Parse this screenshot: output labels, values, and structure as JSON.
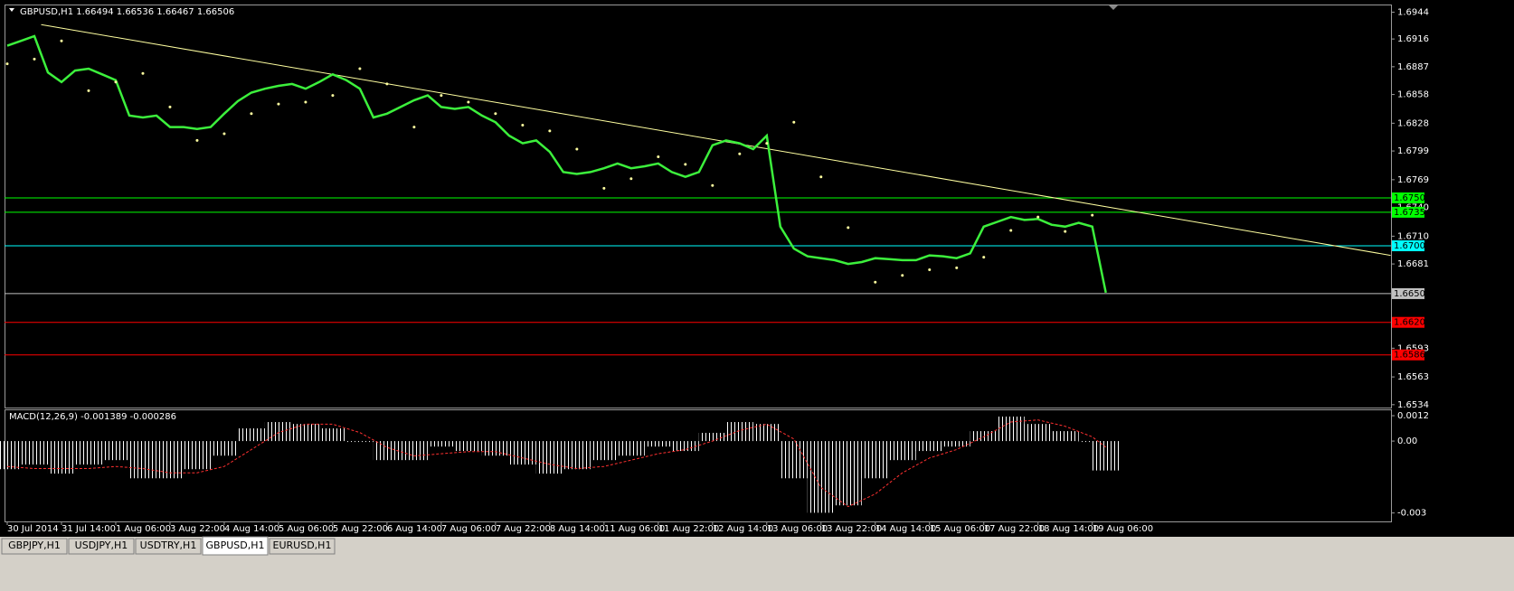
{
  "chart_data": [
    {
      "type": "line",
      "title": "GBPUSD,H1 1.66494 1.66536 1.66467 1.66506",
      "x": [
        0,
        4,
        8,
        12,
        16,
        20,
        24,
        28,
        32,
        36,
        40,
        44,
        48,
        52,
        56,
        60,
        64,
        68,
        72,
        76,
        80,
        84,
        88,
        92,
        96,
        100,
        104,
        108,
        112,
        116,
        120,
        124,
        128,
        132,
        136,
        140,
        144,
        148,
        152,
        156,
        160,
        164,
        168,
        172,
        176,
        180,
        184,
        188,
        192,
        196,
        200,
        204,
        208,
        212,
        216,
        220,
        224,
        228,
        232,
        236,
        240,
        244,
        248,
        252,
        256,
        260,
        264,
        268,
        272,
        276,
        280,
        284,
        288,
        292,
        296,
        300,
        304,
        308,
        312,
        316,
        320,
        324
      ],
      "series": [
        {
          "color": "#3cf03c",
          "values": [
            1.6909,
            1.6914,
            1.6919,
            1.6881,
            1.6871,
            1.6883,
            1.6885,
            1.6879,
            1.6873,
            1.6836,
            1.6834,
            1.6836,
            1.6824,
            1.6824,
            1.6822,
            1.6824,
            1.6838,
            1.6851,
            1.686,
            1.6864,
            1.6867,
            1.6869,
            1.6864,
            1.6871,
            1.6879,
            1.6873,
            1.6864,
            1.6834,
            1.6838,
            1.6845,
            1.6852,
            1.6857,
            1.6845,
            1.6843,
            1.6845,
            1.6836,
            1.6829,
            1.6815,
            1.6807,
            1.681,
            1.6798,
            1.6777,
            1.6775,
            1.6777,
            1.6781,
            1.6786,
            1.6781,
            1.6783,
            1.6786,
            1.6777,
            1.6772,
            1.6777,
            1.6805,
            1.681,
            1.6807,
            1.6801,
            1.6815,
            1.672,
            1.6697,
            1.6689,
            1.6687,
            1.6685,
            1.6681,
            1.6683,
            1.6687,
            1.6686,
            1.6685,
            1.6685,
            1.669,
            1.6689,
            1.6687,
            1.6692,
            1.672,
            1.6725,
            1.673,
            1.6727,
            1.6728,
            1.6722,
            1.672,
            1.6724,
            1.672,
            1.6651
          ]
        }
      ],
      "sar": {
        "color": "#ffffa0",
        "x": [
          0,
          8,
          16,
          24,
          32,
          40,
          48,
          56,
          64,
          72,
          80,
          88,
          96,
          104,
          112,
          120,
          128,
          136,
          144,
          152,
          160,
          168,
          176,
          184,
          192,
          200,
          208,
          216,
          224,
          232,
          240,
          248,
          256,
          264,
          272,
          280,
          288,
          296,
          304,
          312,
          320
        ],
        "values": [
          1.689,
          1.6895,
          1.6914,
          1.6862,
          1.6871,
          1.688,
          1.6845,
          1.681,
          1.6817,
          1.6838,
          1.6848,
          1.685,
          1.6857,
          1.6885,
          1.6869,
          1.6824,
          1.6857,
          1.685,
          1.6838,
          1.6826,
          1.682,
          1.6801,
          1.676,
          1.677,
          1.6793,
          1.6785,
          1.6763,
          1.6796,
          1.6807,
          1.6829,
          1.6772,
          1.6719,
          1.6662,
          1.6669,
          1.6675,
          1.6677,
          1.6688,
          1.6716,
          1.673,
          1.6715,
          1.6732
        ]
      },
      "trendline": {
        "color": "#ffffa0",
        "x": [
          10,
          408
        ],
        "y": [
          1.6931,
          1.669
        ]
      },
      "levels": [
        {
          "value": 1.675,
          "label": "1.6750",
          "color": "#00ff00"
        },
        {
          "value": 1.6735,
          "label": "1.6735",
          "color": "#00ff00"
        },
        {
          "value": 1.67,
          "label": "1.6700",
          "color": "#00ffff"
        },
        {
          "value": 1.665,
          "label": "1.6650",
          "color": "#c0c0c0"
        },
        {
          "value": 1.662,
          "label": "1.6620",
          "color": "#ff0000"
        },
        {
          "value": 1.6586,
          "label": "1.6586",
          "color": "#ff0000"
        }
      ],
      "xlim": [
        -0.8,
        408.1
      ],
      "ylim": [
        1.6531,
        1.6952
      ],
      "yticks": [
        1.6944,
        1.6916,
        1.6887,
        1.6858,
        1.6828,
        1.6799,
        1.6769,
        {
          "value": 1.674,
          "label": "1.6740"
        },
        {
          "value": 1.671,
          "label": "1.6710"
        },
        1.6681,
        1.6593,
        1.6563,
        1.6534
      ]
    },
    {
      "type": "macd",
      "title": "MACD(12,26,9) -0.001389 -0.000286",
      "x": [
        0,
        8,
        16,
        24,
        32,
        40,
        48,
        56,
        64,
        72,
        80,
        88,
        96,
        104,
        112,
        120,
        128,
        136,
        144,
        152,
        160,
        168,
        176,
        184,
        192,
        200,
        208,
        216,
        224,
        232,
        240,
        248,
        256,
        264,
        272,
        280,
        288,
        296,
        304,
        312,
        320,
        324
      ],
      "series": [
        {
          "type": "bar",
          "color": "#ffffff",
          "values": [
            -0.00133,
            -0.00111,
            -0.00154,
            -0.00111,
            -0.0009,
            -0.00176,
            -0.00176,
            -0.00133,
            -0.00069,
            0.0006,
            0.0009,
            0.00081,
            0.0006,
            -4e-05,
            -0.0009,
            -0.0009,
            -0.00026,
            -0.00047,
            -0.00069,
            -0.00111,
            -0.00154,
            -0.00133,
            -0.0009,
            -0.00069,
            -0.00026,
            -0.00047,
            0.00039,
            0.0009,
            0.00081,
            -0.00176,
            -0.00339,
            -0.00304,
            -0.00176,
            -0.0009,
            -0.00047,
            -0.00026,
            0.00047,
            0.00116,
            0.00081,
            0.00047,
            -4e-05,
            -0.00139
          ]
        },
        {
          "type": "line",
          "color": "#ff3030",
          "values": [
            -0.0012,
            -0.0013,
            -0.0013,
            -0.0013,
            -0.0012,
            -0.0013,
            -0.0015,
            -0.0015,
            -0.0012,
            -0.0004,
            0.0004,
            0.0008,
            0.0008,
            0.0004,
            -0.0003,
            -0.0007,
            -0.0006,
            -0.0005,
            -0.0005,
            -0.0008,
            -0.0011,
            -0.0013,
            -0.0012,
            -0.0009,
            -0.0006,
            -0.0004,
            0.0,
            0.0005,
            0.0008,
            0.0001,
            -0.0022,
            -0.0031,
            -0.0025,
            -0.0015,
            -0.0008,
            -0.0004,
            0.0002,
            0.0009,
            0.001,
            0.0007,
            0.0002,
            -0.00029
          ]
        }
      ],
      "xlim": [
        -0.8,
        408.1
      ],
      "ylim": [
        -0.0038,
        0.0015
      ],
      "yticks": [
        0.0012,
        {
          "value": 0,
          "label": "0.00"
        },
        {
          "value": -0.0034,
          "label": "-0.003"
        }
      ],
      "xticks": [
        {
          "value": 0,
          "label": "30 Jul 2014"
        },
        {
          "value": 16,
          "label": "31 Jul 14:00"
        },
        {
          "value": 32,
          "label": "1 Aug 06:00"
        },
        {
          "value": 48,
          "label": "3 Aug 22:00"
        },
        {
          "value": 64,
          "label": "4 Aug 14:00"
        },
        {
          "value": 80,
          "label": "5 Aug 06:00"
        },
        {
          "value": 96,
          "label": "5 Aug 22:00"
        },
        {
          "value": 112,
          "label": "6 Aug 14:00"
        },
        {
          "value": 128,
          "label": "7 Aug 06:00"
        },
        {
          "value": 144,
          "label": "7 Aug 22:00"
        },
        {
          "value": 160,
          "label": "8 Aug 14:00"
        },
        {
          "value": 176,
          "label": "11 Aug 06:00"
        },
        {
          "value": 192,
          "label": "11 Aug 22:00"
        },
        {
          "value": 208,
          "label": "12 Aug 14:00"
        },
        {
          "value": 224,
          "label": "13 Aug 06:00"
        },
        {
          "value": 240,
          "label": "13 Aug 22:00"
        },
        {
          "value": 256,
          "label": "14 Aug 14:00"
        },
        {
          "value": 272,
          "label": "15 Aug 06:00"
        },
        {
          "value": 288,
          "label": "17 Aug 22:00"
        },
        {
          "value": 304,
          "label": "18 Aug 14:00"
        },
        {
          "value": 320,
          "label": "19 Aug 06:00"
        }
      ]
    }
  ],
  "tabs": {
    "items": [
      "GBPJPY,H1",
      "USDJPY,H1",
      "USDTRY,H1",
      "GBPUSD,H1",
      "EURUSD,H1"
    ],
    "active": 3
  }
}
